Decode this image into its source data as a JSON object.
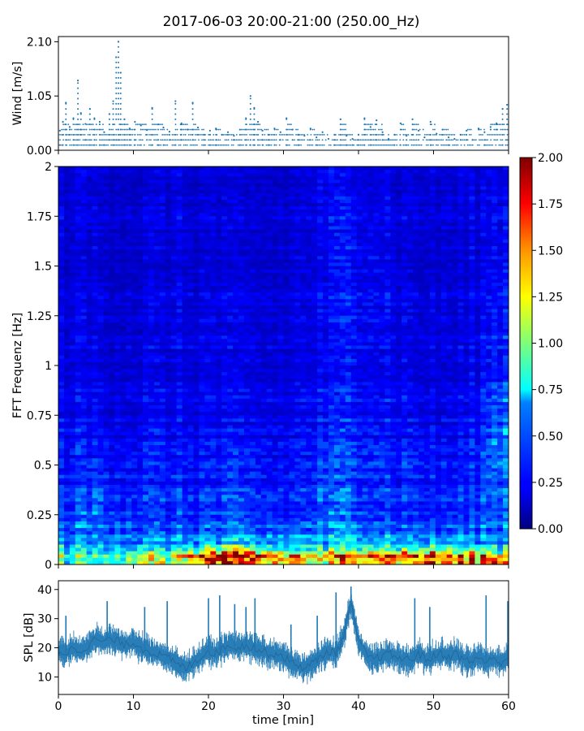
{
  "figure": {
    "title": "2017-06-03 20:00-21:00 (250.00_Hz)"
  },
  "chart_data": [
    {
      "type": "scatter",
      "panel": "wind",
      "title": "",
      "xlabel": "",
      "ylabel": "Wind [m/s]",
      "xlim": [
        0,
        60
      ],
      "ylim": [
        0,
        2.2
      ],
      "yticks": [
        0.0,
        1.05,
        2.1
      ],
      "ytick_labels": [
        "0.00",
        "1.05",
        "2.10"
      ],
      "grid": false,
      "color": "#1f77b4",
      "series": [
        {
          "x": [
            0.2,
            0.6,
            1.0,
            1.5,
            2.0,
            2.6,
            3.0,
            3.6,
            4.2,
            4.8,
            5.5,
            6.1,
            6.8,
            7.3,
            7.7,
            8.0,
            8.3,
            8.8,
            9.5,
            10.2,
            11.0,
            11.8,
            12.5,
            13.3,
            14.0,
            14.8,
            15.6,
            16.4,
            17.2,
            17.9,
            18.6,
            19.4,
            20.2,
            21.0,
            21.8,
            22.6,
            23.4,
            24.2,
            25.0,
            25.6,
            26.1,
            26.6,
            27.2,
            28.0,
            28.8,
            29.6,
            30.4,
            31.2,
            32.0,
            32.8,
            33.6,
            34.4,
            35.2,
            36.0,
            36.8,
            37.6,
            38.4,
            39.2,
            40.0,
            40.8,
            41.6,
            42.4,
            43.2,
            44.0,
            44.8,
            45.6,
            46.4,
            47.2,
            48.0,
            48.8,
            49.6,
            50.4,
            51.2,
            52.0,
            52.8,
            53.6,
            54.4,
            55.2,
            56.0,
            56.8,
            57.6,
            58.4,
            59.2,
            59.8
          ],
          "y": [
            0.38,
            0.55,
            0.92,
            0.45,
            0.62,
            1.35,
            0.72,
            0.51,
            0.8,
            0.62,
            0.55,
            0.35,
            0.7,
            0.95,
            1.8,
            2.1,
            1.5,
            0.6,
            0.42,
            0.55,
            0.48,
            0.39,
            0.82,
            0.5,
            0.44,
            0.36,
            0.95,
            0.52,
            0.4,
            0.92,
            0.44,
            0.3,
            0.38,
            0.42,
            0.3,
            0.35,
            0.28,
            0.4,
            0.62,
            1.05,
            0.82,
            0.55,
            0.38,
            0.3,
            0.42,
            0.35,
            0.62,
            0.4,
            0.3,
            0.28,
            0.42,
            0.25,
            0.35,
            0.22,
            0.3,
            0.6,
            0.28,
            0.22,
            0.3,
            0.62,
            0.45,
            0.58,
            0.35,
            0.22,
            0.3,
            0.52,
            0.28,
            0.6,
            0.38,
            0.25,
            0.55,
            0.32,
            0.4,
            0.25,
            0.22,
            0.3,
            0.38,
            0.2,
            0.42,
            0.35,
            0.45,
            0.52,
            0.8,
            0.88
          ]
        }
      ]
    },
    {
      "type": "heatmap",
      "panel": "spectrogram",
      "title": "",
      "xlabel": "",
      "ylabel": "FFT Frequenz [Hz]",
      "xlim": [
        0,
        60
      ],
      "ylim": [
        0,
        2
      ],
      "yticks": [
        0,
        0.25,
        0.5,
        0.75,
        1,
        1.25,
        1.5,
        1.75,
        2
      ],
      "ytick_labels": [
        "0",
        "0.25",
        "0.5",
        "0.75",
        "1",
        "1.25",
        "1.5",
        "1.75",
        "2"
      ],
      "colormap": "jet",
      "clim": [
        0.0,
        2.0
      ],
      "colorbar_ticks": [
        "0.00",
        "0.25",
        "0.50",
        "0.75",
        "1.00",
        "1.25",
        "1.50",
        "1.75",
        "2.00"
      ],
      "frequency_rows_hz": [
        0.02,
        0.05,
        0.08,
        0.12,
        0.18,
        0.25,
        0.35,
        0.5,
        0.75,
        1.0,
        1.5,
        2.0
      ],
      "time_columns_min": [
        0,
        5,
        10,
        15,
        20,
        25,
        30,
        35,
        40,
        45,
        50,
        55,
        60
      ],
      "values": [
        [
          1.05,
          0.85,
          1.4,
          1.2,
          2.0,
          1.9,
          1.6,
          1.3,
          2.0,
          1.9,
          1.95,
          1.8,
          1.7
        ],
        [
          0.85,
          0.75,
          1.0,
          0.9,
          1.6,
          1.5,
          1.2,
          1.0,
          1.6,
          1.4,
          1.5,
          1.3,
          1.2
        ],
        [
          0.7,
          0.65,
          0.75,
          0.7,
          0.9,
          0.85,
          0.8,
          0.75,
          1.0,
          0.9,
          0.85,
          0.8,
          0.8
        ],
        [
          0.55,
          0.6,
          0.55,
          0.6,
          0.6,
          0.6,
          0.65,
          0.6,
          0.75,
          0.65,
          0.55,
          0.55,
          0.6
        ],
        [
          0.45,
          0.5,
          0.45,
          0.4,
          0.45,
          0.45,
          0.4,
          0.5,
          0.55,
          0.45,
          0.4,
          0.45,
          0.55
        ],
        [
          0.35,
          0.45,
          0.35,
          0.35,
          0.35,
          0.35,
          0.3,
          0.4,
          0.45,
          0.35,
          0.3,
          0.35,
          0.5
        ],
        [
          0.3,
          0.38,
          0.3,
          0.3,
          0.3,
          0.3,
          0.28,
          0.35,
          0.4,
          0.3,
          0.28,
          0.3,
          0.45
        ],
        [
          0.25,
          0.28,
          0.25,
          0.25,
          0.25,
          0.25,
          0.22,
          0.3,
          0.35,
          0.28,
          0.25,
          0.25,
          0.55
        ],
        [
          0.22,
          0.22,
          0.2,
          0.22,
          0.22,
          0.2,
          0.2,
          0.25,
          0.3,
          0.25,
          0.2,
          0.22,
          0.5
        ],
        [
          0.2,
          0.2,
          0.18,
          0.2,
          0.2,
          0.18,
          0.18,
          0.22,
          0.28,
          0.22,
          0.18,
          0.2,
          0.35
        ],
        [
          0.18,
          0.18,
          0.16,
          0.18,
          0.18,
          0.16,
          0.16,
          0.2,
          0.3,
          0.2,
          0.16,
          0.18,
          0.28
        ],
        [
          0.18,
          0.18,
          0.16,
          0.18,
          0.16,
          0.15,
          0.15,
          0.2,
          0.22,
          0.18,
          0.16,
          0.18,
          0.22
        ]
      ]
    },
    {
      "type": "line",
      "panel": "spl",
      "title": "",
      "xlabel": "time [min]",
      "ylabel": "SPL [dB]",
      "xlim": [
        0,
        60
      ],
      "ylim": [
        4,
        43
      ],
      "xticks": [
        0,
        10,
        20,
        30,
        40,
        50,
        60
      ],
      "xtick_labels": [
        "0",
        "10",
        "20",
        "30",
        "40",
        "50",
        "60"
      ],
      "yticks": [
        10,
        20,
        30,
        40
      ],
      "ytick_labels": [
        "10",
        "20",
        "30",
        "40"
      ],
      "color": "#1f77b4",
      "series": [
        {
          "x": [
            0,
            1,
            2,
            3,
            4,
            5,
            6,
            7,
            8,
            9,
            10,
            11,
            12,
            13,
            14,
            15,
            16,
            17,
            18,
            19,
            20,
            21,
            22,
            23,
            24,
            25,
            26,
            27,
            28,
            29,
            30,
            31,
            32,
            33,
            34,
            35,
            36,
            37,
            38,
            38.5,
            39,
            39.5,
            40,
            41,
            42,
            43,
            44,
            45,
            46,
            47,
            48,
            49,
            50,
            51,
            52,
            53,
            54,
            55,
            56,
            57,
            58,
            59,
            60
          ],
          "y": [
            19,
            18,
            20,
            19,
            21,
            23,
            22,
            23,
            22,
            21,
            22,
            20,
            19,
            18,
            17,
            16,
            14,
            13,
            15,
            17,
            19,
            18,
            20,
            21,
            20,
            21,
            20,
            19,
            18,
            18,
            17,
            15,
            14,
            13,
            15,
            17,
            19,
            18,
            24,
            30,
            35,
            29,
            22,
            18,
            16,
            17,
            18,
            17,
            16,
            16,
            18,
            16,
            17,
            18,
            17,
            18,
            16,
            15,
            17,
            15,
            16,
            15,
            17
          ],
          "spikes": [
            {
              "x": 1.0,
              "y": 31
            },
            {
              "x": 6.5,
              "y": 36
            },
            {
              "x": 11.5,
              "y": 34
            },
            {
              "x": 14.5,
              "y": 36
            },
            {
              "x": 20.0,
              "y": 37
            },
            {
              "x": 21.5,
              "y": 38
            },
            {
              "x": 23.5,
              "y": 35
            },
            {
              "x": 25.0,
              "y": 34
            },
            {
              "x": 26.2,
              "y": 37
            },
            {
              "x": 31.0,
              "y": 28
            },
            {
              "x": 34.5,
              "y": 31
            },
            {
              "x": 37.0,
              "y": 39
            },
            {
              "x": 39.0,
              "y": 41
            },
            {
              "x": 47.5,
              "y": 37
            },
            {
              "x": 49.5,
              "y": 34
            },
            {
              "x": 57.0,
              "y": 38
            },
            {
              "x": 59.9,
              "y": 36
            }
          ]
        }
      ]
    }
  ]
}
